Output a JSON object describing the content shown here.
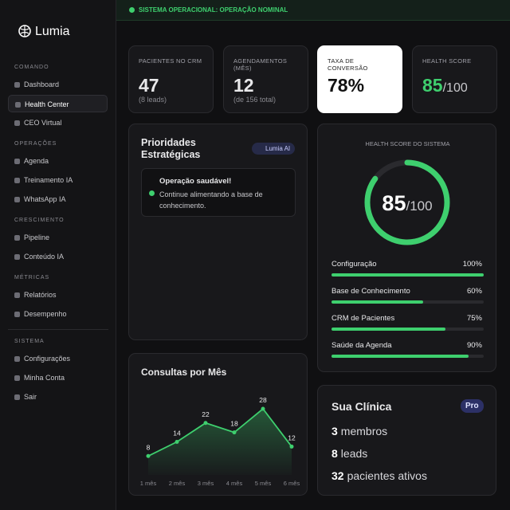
{
  "status": "SISTEMA OPERACIONAL: OPERAÇÃO NOMINAL",
  "brand": "Lumia",
  "sidebar": [
    {
      "title": "COMANDO",
      "items": [
        "Dashboard",
        "Health Center",
        "CEO Virtual"
      ]
    },
    {
      "title": "OPERAÇÕES",
      "items": [
        "Agenda",
        "Treinamento IA",
        "WhatsApp IA"
      ]
    },
    {
      "title": "CRESCIMENTO",
      "items": [
        "Pipeline",
        "Conteúdo IA"
      ]
    },
    {
      "title": "MÉTRICAS",
      "items": [
        "Relatórios",
        "Desempenho"
      ]
    },
    {
      "title": "SISTEMA",
      "items": [
        "Configurações",
        "Minha Conta",
        "Sair"
      ]
    }
  ],
  "active_item": "Health Center",
  "stats": [
    {
      "label": "PACIENTES NO CRM",
      "value": 47,
      "note": "(8 leads)"
    },
    {
      "label": "AGENDAMENTOS (MÊS)",
      "value": 12,
      "note": "(de 156 total)"
    },
    {
      "label": "TAXA DE CONVERSÃO",
      "value": "78%"
    },
    {
      "label": "HEALTH SCORE",
      "value": 85,
      "suffix": "/100"
    }
  ],
  "priorities": {
    "title": "Prioridades Estratégicas",
    "badge": "Lumia AI",
    "alert_title": "Operação saudável!",
    "alert_text": "Continue alimentando a base de conhecimento."
  },
  "health": {
    "title": "HEALTH SCORE DO SISTEMA",
    "score": 85,
    "score_max": {
      "value": 100,
      "label": "/100"
    },
    "metrics": [
      {
        "name": "Configuração",
        "value": 100,
        "label": "100%"
      },
      {
        "name": "Base de Conhecimento",
        "value": 60,
        "label": "60%"
      },
      {
        "name": "CRM de Pacientes",
        "value": 75,
        "label": "75%"
      },
      {
        "name": "Saúde da Agenda",
        "value": 90,
        "label": "90%"
      }
    ]
  },
  "chart_data": {
    "type": "line",
    "title": "Consultas por Mês",
    "categories": [
      "1 mês",
      "2 mês",
      "3 mês",
      "4 mês",
      "5 mês",
      "6 mês"
    ],
    "values": [
      8,
      14,
      22,
      18,
      28,
      12
    ],
    "color": "#3ecf6e"
  },
  "clinic": {
    "title": "Sua Clínica",
    "badge": "Pro",
    "lines": [
      {
        "count": 3,
        "label": "membros"
      },
      {
        "count": 8,
        "label": "leads"
      },
      {
        "count": 32,
        "label": "pacientes ativos"
      }
    ]
  }
}
